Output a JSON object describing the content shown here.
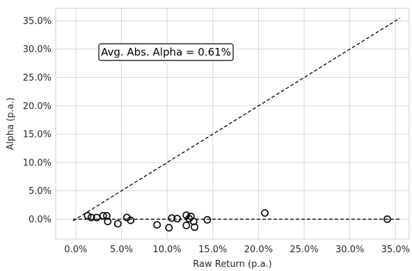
{
  "chart_data": {
    "type": "scatter",
    "xlabel": "Raw Return (p.a.)",
    "ylabel": "Alpha (p.a.)",
    "xlim": [
      -2.2,
      36.5
    ],
    "ylim": [
      -3.5,
      37.2
    ],
    "x_ticks": [
      0,
      5,
      10,
      15,
      20,
      25,
      30,
      35
    ],
    "y_ticks": [
      0,
      5,
      10,
      15,
      20,
      25,
      30,
      35
    ],
    "x_tick_labels": [
      "0.0%",
      "5.0%",
      "10.0%",
      "15.0%",
      "20.0%",
      "25.0%",
      "30.0%",
      "35.0%"
    ],
    "y_tick_labels": [
      "0.0%",
      "5.0%",
      "10.0%",
      "15.0%",
      "20.0%",
      "25.0%",
      "30.0%",
      "35.0%"
    ],
    "grid": true,
    "annotation": "Avg. Abs. Alpha = 0.61%",
    "reference_lines": [
      {
        "kind": "identity",
        "x": [
          -0.3,
          35.5
        ],
        "y": [
          -0.3,
          35.5
        ],
        "style": "dashed"
      },
      {
        "kind": "zero",
        "x": [
          -0.3,
          35.5
        ],
        "y": [
          0,
          0
        ],
        "style": "dashed"
      }
    ],
    "points": [
      {
        "x": 1.3,
        "y": 0.6
      },
      {
        "x": 1.7,
        "y": 0.3
      },
      {
        "x": 2.3,
        "y": 0.3
      },
      {
        "x": 3.0,
        "y": 0.6
      },
      {
        "x": 3.4,
        "y": 0.6
      },
      {
        "x": 3.5,
        "y": -0.4
      },
      {
        "x": 4.6,
        "y": -0.8
      },
      {
        "x": 5.6,
        "y": 0.3
      },
      {
        "x": 6.0,
        "y": -0.2
      },
      {
        "x": 8.9,
        "y": -1.0
      },
      {
        "x": 10.2,
        "y": -1.5
      },
      {
        "x": 10.5,
        "y": 0.2
      },
      {
        "x": 11.1,
        "y": 0.1
      },
      {
        "x": 12.1,
        "y": 0.7
      },
      {
        "x": 12.1,
        "y": -1.1
      },
      {
        "x": 12.4,
        "y": 0.1
      },
      {
        "x": 12.6,
        "y": 0.5
      },
      {
        "x": 12.9,
        "y": -0.4
      },
      {
        "x": 13.0,
        "y": -1.4
      },
      {
        "x": 14.4,
        "y": -0.1
      },
      {
        "x": 20.7,
        "y": 1.1
      },
      {
        "x": 34.1,
        "y": 0.0
      }
    ]
  }
}
